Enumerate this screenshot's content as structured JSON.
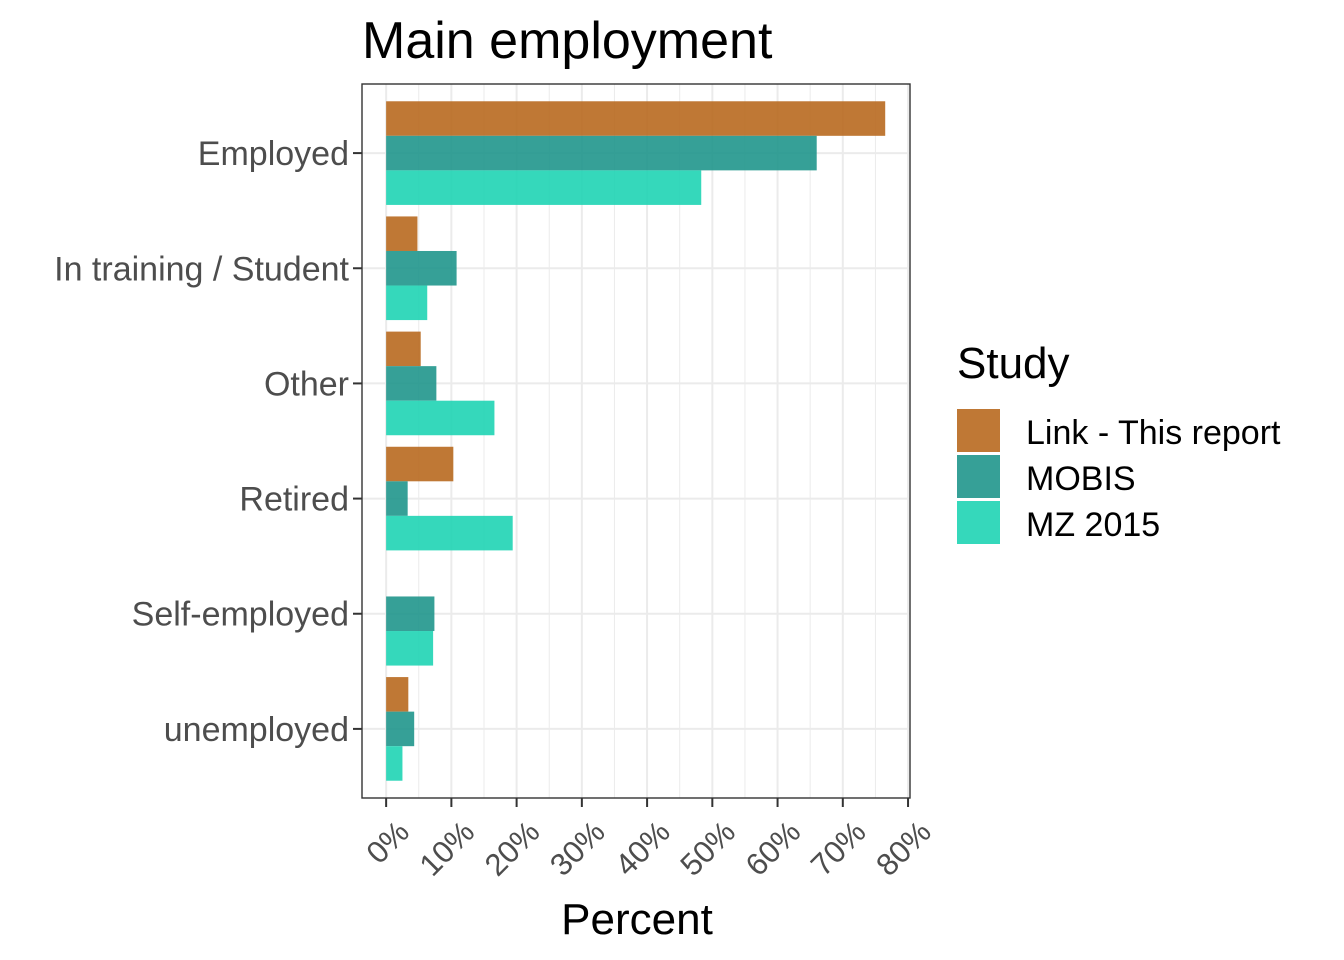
{
  "chart_data": {
    "type": "bar",
    "orientation": "horizontal",
    "title": "Main employment",
    "xlabel": "Percent",
    "ylabel": "",
    "categories": [
      "Employed",
      "In training / Student",
      "Other",
      "Retired",
      "Self-employed",
      "unemployed"
    ],
    "series": [
      {
        "name": "Link - This report",
        "color": "#b8691f",
        "values": [
          76.5,
          4.8,
          5.3,
          10.3,
          0,
          3.4
        ]
      },
      {
        "name": "MOBIS",
        "color": "#20968c",
        "values": [
          66.0,
          10.8,
          7.7,
          3.3,
          7.4,
          4.3
        ]
      },
      {
        "name": "MZ 2015",
        "color": "#1fd4b4",
        "values": [
          48.3,
          6.3,
          16.6,
          19.4,
          7.2,
          2.5
        ]
      }
    ],
    "xlim": [
      -3.7,
      80.3
    ],
    "xticks": [
      0,
      10,
      20,
      30,
      40,
      50,
      60,
      70,
      80
    ],
    "xtick_labels": [
      "0%",
      "10%",
      "20%",
      "30%",
      "40%",
      "50%",
      "60%",
      "70%",
      "80%"
    ],
    "grid": true,
    "legend": {
      "title": "Study",
      "position": "right"
    }
  }
}
